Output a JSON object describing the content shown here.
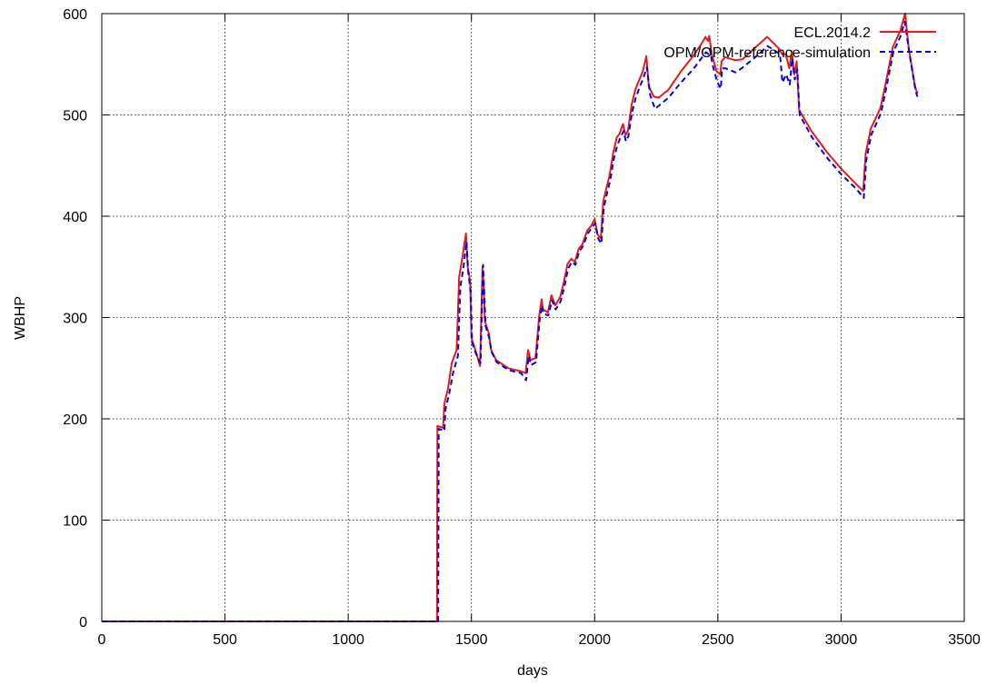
{
  "chart_data": {
    "type": "line",
    "title": "",
    "xlabel": "days",
    "ylabel": "WBHP",
    "xlim": [
      0,
      3500
    ],
    "ylim": [
      0,
      600
    ],
    "xticks": [
      0,
      500,
      1000,
      1500,
      2000,
      2500,
      3000,
      3500
    ],
    "yticks": [
      0,
      100,
      200,
      300,
      400,
      500,
      600
    ],
    "grid": true,
    "legend_position": "top-right",
    "series": [
      {
        "name": "ECL.2014.2",
        "color": "#e41a1c",
        "style": "solid",
        "points": [
          [
            0,
            0
          ],
          [
            1360,
            0
          ],
          [
            1362,
            193
          ],
          [
            1385,
            191
          ],
          [
            1390,
            215
          ],
          [
            1405,
            230
          ],
          [
            1420,
            255
          ],
          [
            1440,
            268
          ],
          [
            1450,
            340
          ],
          [
            1465,
            362
          ],
          [
            1478,
            383
          ],
          [
            1485,
            350
          ],
          [
            1495,
            335
          ],
          [
            1500,
            280
          ],
          [
            1520,
            265
          ],
          [
            1535,
            252
          ],
          [
            1545,
            350
          ],
          [
            1550,
            330
          ],
          [
            1555,
            296
          ],
          [
            1570,
            285
          ],
          [
            1580,
            268
          ],
          [
            1600,
            258
          ],
          [
            1650,
            250
          ],
          [
            1700,
            247
          ],
          [
            1720,
            245
          ],
          [
            1730,
            268
          ],
          [
            1740,
            258
          ],
          [
            1760,
            260
          ],
          [
            1775,
            302
          ],
          [
            1785,
            318
          ],
          [
            1790,
            308
          ],
          [
            1810,
            305
          ],
          [
            1825,
            322
          ],
          [
            1840,
            312
          ],
          [
            1860,
            320
          ],
          [
            1875,
            335
          ],
          [
            1890,
            353
          ],
          [
            1905,
            358
          ],
          [
            1920,
            355
          ],
          [
            1935,
            368
          ],
          [
            1950,
            372
          ],
          [
            1970,
            386
          ],
          [
            1985,
            390
          ],
          [
            2000,
            397
          ],
          [
            2012,
            382
          ],
          [
            2025,
            378
          ],
          [
            2035,
            415
          ],
          [
            2050,
            430
          ],
          [
            2060,
            440
          ],
          [
            2075,
            462
          ],
          [
            2090,
            478
          ],
          [
            2100,
            481
          ],
          [
            2115,
            491
          ],
          [
            2125,
            480
          ],
          [
            2135,
            484
          ],
          [
            2150,
            510
          ],
          [
            2165,
            525
          ],
          [
            2180,
            534
          ],
          [
            2195,
            543
          ],
          [
            2210,
            558
          ],
          [
            2220,
            528
          ],
          [
            2240,
            518
          ],
          [
            2260,
            517
          ],
          [
            2300,
            525
          ],
          [
            2350,
            543
          ],
          [
            2400,
            558
          ],
          [
            2430,
            569
          ],
          [
            2450,
            577
          ],
          [
            2460,
            573
          ],
          [
            2465,
            578
          ],
          [
            2475,
            560
          ],
          [
            2495,
            543
          ],
          [
            2510,
            540
          ],
          [
            2515,
            553
          ],
          [
            2530,
            557
          ],
          [
            2570,
            554
          ],
          [
            2600,
            555
          ],
          [
            2650,
            566
          ],
          [
            2700,
            577
          ],
          [
            2750,
            565
          ],
          [
            2760,
            560
          ],
          [
            2775,
            560
          ],
          [
            2790,
            546
          ],
          [
            2800,
            563
          ],
          [
            2810,
            540
          ],
          [
            2820,
            553
          ],
          [
            2830,
            505
          ],
          [
            2880,
            484
          ],
          [
            2940,
            464
          ],
          [
            3000,
            447
          ],
          [
            3060,
            432
          ],
          [
            3090,
            425
          ],
          [
            3100,
            462
          ],
          [
            3120,
            486
          ],
          [
            3160,
            507
          ],
          [
            3180,
            530
          ],
          [
            3210,
            567
          ],
          [
            3240,
            583
          ],
          [
            3260,
            600
          ],
          [
            3275,
            565
          ],
          [
            3300,
            528
          ],
          [
            3310,
            521
          ]
        ]
      },
      {
        "name": "OPM/OPM-reference-simulation",
        "color": "#0000e6",
        "style": "dashed",
        "points": [
          [
            0,
            0
          ],
          [
            1365,
            0
          ],
          [
            1367,
            190
          ],
          [
            1390,
            188
          ],
          [
            1395,
            210
          ],
          [
            1410,
            225
          ],
          [
            1425,
            245
          ],
          [
            1445,
            262
          ],
          [
            1455,
            330
          ],
          [
            1468,
            350
          ],
          [
            1480,
            375
          ],
          [
            1487,
            345
          ],
          [
            1497,
            325
          ],
          [
            1503,
            275
          ],
          [
            1522,
            262
          ],
          [
            1537,
            255
          ],
          [
            1547,
            352
          ],
          [
            1552,
            325
          ],
          [
            1557,
            292
          ],
          [
            1572,
            280
          ],
          [
            1582,
            266
          ],
          [
            1602,
            256
          ],
          [
            1652,
            248
          ],
          [
            1702,
            245
          ],
          [
            1722,
            238
          ],
          [
            1732,
            262
          ],
          [
            1742,
            253
          ],
          [
            1762,
            256
          ],
          [
            1777,
            298
          ],
          [
            1787,
            312
          ],
          [
            1792,
            304
          ],
          [
            1812,
            302
          ],
          [
            1827,
            317
          ],
          [
            1842,
            308
          ],
          [
            1862,
            316
          ],
          [
            1877,
            330
          ],
          [
            1892,
            348
          ],
          [
            1907,
            355
          ],
          [
            1922,
            352
          ],
          [
            1937,
            365
          ],
          [
            1952,
            370
          ],
          [
            1972,
            383
          ],
          [
            1987,
            388
          ],
          [
            2002,
            393
          ],
          [
            2014,
            378
          ],
          [
            2027,
            373
          ],
          [
            2037,
            408
          ],
          [
            2052,
            425
          ],
          [
            2062,
            434
          ],
          [
            2077,
            456
          ],
          [
            2092,
            470
          ],
          [
            2102,
            476
          ],
          [
            2117,
            484
          ],
          [
            2127,
            474
          ],
          [
            2137,
            479
          ],
          [
            2152,
            503
          ],
          [
            2167,
            517
          ],
          [
            2182,
            527
          ],
          [
            2197,
            536
          ],
          [
            2212,
            547
          ],
          [
            2225,
            520
          ],
          [
            2245,
            506
          ],
          [
            2265,
            510
          ],
          [
            2300,
            517
          ],
          [
            2350,
            532
          ],
          [
            2400,
            545
          ],
          [
            2430,
            555
          ],
          [
            2452,
            562
          ],
          [
            2462,
            560
          ],
          [
            2468,
            565
          ],
          [
            2478,
            550
          ],
          [
            2498,
            532
          ],
          [
            2512,
            526
          ],
          [
            2517,
            546
          ],
          [
            2532,
            546
          ],
          [
            2572,
            542
          ],
          [
            2602,
            547
          ],
          [
            2652,
            557
          ],
          [
            2702,
            568
          ],
          [
            2752,
            560
          ],
          [
            2762,
            532
          ],
          [
            2777,
            540
          ],
          [
            2792,
            530
          ],
          [
            2802,
            556
          ],
          [
            2812,
            535
          ],
          [
            2822,
            545
          ],
          [
            2832,
            500
          ],
          [
            2882,
            478
          ],
          [
            2942,
            458
          ],
          [
            3002,
            441
          ],
          [
            3062,
            427
          ],
          [
            3092,
            418
          ],
          [
            3102,
            455
          ],
          [
            3122,
            480
          ],
          [
            3162,
            502
          ],
          [
            3182,
            525
          ],
          [
            3212,
            562
          ],
          [
            3242,
            578
          ],
          [
            3258,
            592
          ],
          [
            3278,
            560
          ],
          [
            3303,
            523
          ],
          [
            3310,
            518
          ]
        ]
      }
    ]
  }
}
